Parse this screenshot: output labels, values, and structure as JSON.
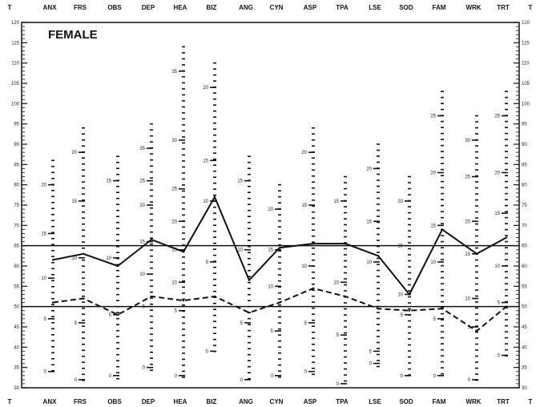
{
  "chart_data": {
    "type": "line",
    "title": "FEMALE",
    "axis_end_label": "T",
    "categories": [
      "ANX",
      "FRS",
      "OBS",
      "DEP",
      "HEA",
      "BIZ",
      "ANG",
      "CYN",
      "ASP",
      "TPA",
      "LSE",
      "SOD",
      "FAM",
      "WRK",
      "TRT"
    ],
    "ylim": [
      30,
      120
    ],
    "y_ticks": [
      30,
      35,
      40,
      45,
      50,
      55,
      60,
      65,
      70,
      75,
      80,
      85,
      90,
      95,
      100,
      105,
      110,
      115,
      120
    ],
    "reference_lines": [
      65,
      50
    ],
    "series": [
      {
        "values": [
          61.5,
          63,
          60,
          66.5,
          63.5,
          77,
          56.5,
          64.5,
          65.5,
          65.5,
          62.5,
          53,
          69,
          63,
          67
        ],
        "style": "solid",
        "color": "#111111"
      },
      {
        "values": [
          51,
          52,
          48,
          52.5,
          51.5,
          52.5,
          48.5,
          51,
          54.5,
          52.5,
          49.5,
          49,
          49.5,
          44,
          50
        ],
        "style": "dashed",
        "color": "#111111"
      }
    ],
    "raw_score_labels": [
      [
        [
          "20",
          80
        ],
        [
          "15",
          68
        ],
        [
          "10",
          57
        ],
        [
          "5",
          47
        ],
        [
          "0",
          34
        ]
      ],
      [
        [
          "20",
          88
        ],
        [
          "15",
          76
        ],
        [
          "10",
          62
        ],
        [
          "5",
          46
        ],
        [
          "0",
          32
        ]
      ],
      [
        [
          "15",
          81
        ],
        [
          "10",
          62
        ],
        [
          "5",
          48
        ],
        [
          "0",
          33
        ]
      ],
      [
        [
          "35",
          89
        ],
        [
          "25",
          81
        ],
        [
          "20",
          75
        ],
        [
          "15",
          66
        ],
        [
          "10",
          58
        ],
        [
          "5",
          50
        ],
        [
          "0",
          35
        ]
      ],
      [
        [
          "35",
          108
        ],
        [
          "30",
          91
        ],
        [
          "25",
          79
        ],
        [
          "20",
          71
        ],
        [
          "15",
          64
        ],
        [
          "10",
          56
        ],
        [
          "5",
          49
        ],
        [
          "0",
          33
        ]
      ],
      [
        [
          "20",
          104
        ],
        [
          "15",
          86
        ],
        [
          "10",
          76
        ],
        [
          "5",
          61
        ],
        [
          "0",
          39
        ]
      ],
      [
        [
          "15",
          81
        ],
        [
          "10",
          64
        ],
        [
          "5",
          46
        ],
        [
          "0",
          32
        ]
      ],
      [
        [
          "20",
          74
        ],
        [
          "15",
          64
        ],
        [
          "10",
          55
        ],
        [
          "5",
          44
        ],
        [
          "0",
          33
        ]
      ],
      [
        [
          "20",
          88
        ],
        [
          "15",
          75
        ],
        [
          "10",
          60
        ],
        [
          "5",
          46
        ],
        [
          "0",
          34
        ]
      ],
      [
        [
          "15",
          76
        ],
        [
          "10",
          56
        ],
        [
          "5",
          43
        ],
        [
          "0",
          31
        ]
      ],
      [
        [
          "20",
          84
        ],
        [
          "15",
          71
        ],
        [
          "10",
          61
        ],
        [
          "5",
          39
        ],
        [
          "0",
          36
        ]
      ],
      [
        [
          "20",
          76
        ],
        [
          "15",
          65
        ],
        [
          "10",
          53
        ],
        [
          "5",
          48
        ],
        [
          "0",
          33
        ]
      ],
      [
        [
          "25",
          97
        ],
        [
          "20",
          83
        ],
        [
          "15",
          70
        ],
        [
          "10",
          61
        ],
        [
          "5",
          47
        ],
        [
          "0",
          33
        ]
      ],
      [
        [
          "30",
          91
        ],
        [
          "25",
          82
        ],
        [
          "20",
          71
        ],
        [
          "15",
          63
        ],
        [
          "10",
          52
        ],
        [
          "5",
          45
        ],
        [
          "0",
          32
        ]
      ],
      [
        [
          "25",
          97
        ],
        [
          "20",
          83
        ],
        [
          "15",
          73
        ],
        [
          "10",
          60
        ],
        [
          "5",
          51
        ],
        [
          "0",
          38
        ]
      ]
    ]
  }
}
